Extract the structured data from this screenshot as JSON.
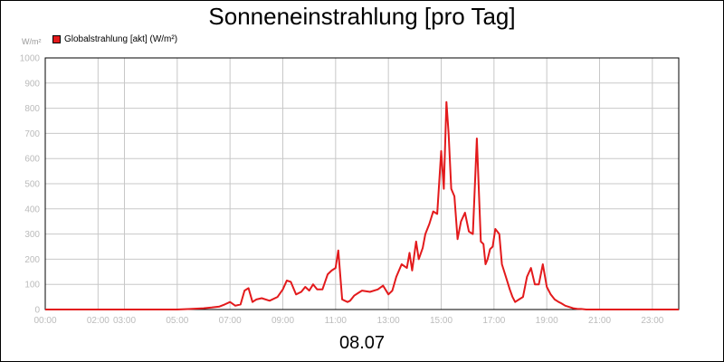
{
  "title": "Sonneneinstrahlung [pro Tag]",
  "date_label": "08.07",
  "chart_data": {
    "type": "line",
    "ylabel": "W/m²",
    "ylim": [
      0,
      1000
    ],
    "y_ticks": [
      0,
      100,
      200,
      300,
      400,
      500,
      600,
      700,
      800,
      900,
      1000
    ],
    "xlim": [
      0,
      24
    ],
    "x_tick_labels": [
      "00:00",
      "02:00",
      "03:00",
      "05:00",
      "07:00",
      "09:00",
      "11:00",
      "13:00",
      "15:00",
      "17:00",
      "19:00",
      "21:00",
      "23:00"
    ],
    "x_tick_positions": [
      0,
      2,
      3,
      5,
      7,
      9,
      11,
      13,
      15,
      17,
      19,
      21,
      23
    ],
    "x_units": "hours",
    "grid": true,
    "legend_position": "top-left",
    "series": [
      {
        "name": "Globalstrahlung [akt] (W/m²)",
        "color": "#e31a1c",
        "x": [
          0,
          5.0,
          5.5,
          6.0,
          6.3,
          6.6,
          6.8,
          7.0,
          7.2,
          7.4,
          7.55,
          7.7,
          7.85,
          8.0,
          8.2,
          8.5,
          8.8,
          9.0,
          9.15,
          9.3,
          9.5,
          9.7,
          9.85,
          10.0,
          10.15,
          10.3,
          10.5,
          10.7,
          10.85,
          11.0,
          11.1,
          11.25,
          11.35,
          11.45,
          11.55,
          11.7,
          11.85,
          12.0,
          12.3,
          12.6,
          12.8,
          13.0,
          13.15,
          13.3,
          13.5,
          13.7,
          13.8,
          13.9,
          14.05,
          14.15,
          14.3,
          14.4,
          14.55,
          14.7,
          14.85,
          15.0,
          15.1,
          15.2,
          15.28,
          15.38,
          15.5,
          15.62,
          15.75,
          15.9,
          16.05,
          16.2,
          16.35,
          16.5,
          16.6,
          16.68,
          16.76,
          16.85,
          16.95,
          17.05,
          17.2,
          17.3,
          17.45,
          17.6,
          17.7,
          17.8,
          17.95,
          18.1,
          18.25,
          18.4,
          18.55,
          18.7,
          18.85,
          19.0,
          19.15,
          19.3,
          19.45,
          19.55,
          19.7,
          19.85,
          20.0,
          20.15,
          20.3,
          20.5,
          21.0,
          24.0
        ],
        "values": [
          0,
          0,
          2,
          5,
          8,
          12,
          20,
          30,
          15,
          20,
          75,
          85,
          30,
          40,
          45,
          35,
          50,
          80,
          115,
          110,
          60,
          70,
          90,
          75,
          100,
          80,
          80,
          140,
          155,
          165,
          235,
          40,
          35,
          30,
          35,
          55,
          65,
          75,
          70,
          80,
          95,
          60,
          75,
          130,
          180,
          165,
          225,
          155,
          270,
          200,
          245,
          300,
          340,
          390,
          380,
          630,
          480,
          825,
          700,
          480,
          450,
          280,
          350,
          385,
          310,
          300,
          680,
          270,
          260,
          180,
          200,
          240,
          250,
          320,
          300,
          180,
          130,
          80,
          50,
          30,
          40,
          50,
          130,
          165,
          100,
          100,
          180,
          90,
          60,
          40,
          30,
          25,
          15,
          10,
          5,
          3,
          2,
          0,
          0,
          0
        ]
      }
    ]
  }
}
